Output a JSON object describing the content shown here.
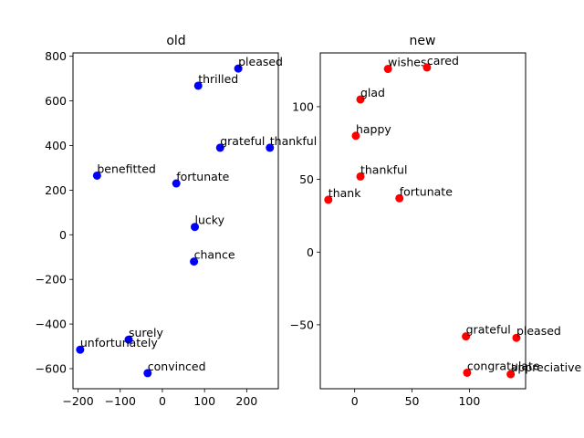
{
  "chart_data": [
    {
      "type": "scatter",
      "title": "old",
      "xlabel": "",
      "ylabel": "",
      "xlim": [
        -212,
        275
      ],
      "ylim": [
        -690,
        815
      ],
      "xticks": [
        -200,
        -100,
        0,
        100,
        200
      ],
      "yticks": [
        -600,
        -400,
        -200,
        0,
        200,
        400,
        600,
        800
      ],
      "xtick_labels": [
        "−200",
        "−100",
        "0",
        "100",
        "200"
      ],
      "ytick_labels": [
        "−600",
        "−400",
        "−200",
        "0",
        "200",
        "400",
        "600",
        "800"
      ],
      "color": "#0000ff",
      "points": [
        {
          "x": 180,
          "y": 745,
          "label": "pleased"
        },
        {
          "x": 85,
          "y": 668,
          "label": "thrilled"
        },
        {
          "x": 137,
          "y": 390,
          "label": "grateful"
        },
        {
          "x": 255,
          "y": 390,
          "label": "thankful"
        },
        {
          "x": -155,
          "y": 265,
          "label": "benefitted"
        },
        {
          "x": 33,
          "y": 230,
          "label": "fortunate"
        },
        {
          "x": 77,
          "y": 35,
          "label": "lucky"
        },
        {
          "x": 75,
          "y": -120,
          "label": "chance"
        },
        {
          "x": -80,
          "y": -470,
          "label": "surely"
        },
        {
          "x": -195,
          "y": -515,
          "label": "unfortunately"
        },
        {
          "x": -35,
          "y": -620,
          "label": "convinced"
        }
      ]
    },
    {
      "type": "scatter",
      "title": "new",
      "xlabel": "",
      "ylabel": "",
      "xlim": [
        -30,
        149
      ],
      "ylim": [
        -94,
        137
      ],
      "xticks": [
        0,
        50,
        100
      ],
      "yticks": [
        -50,
        0,
        50,
        100
      ],
      "xtick_labels": [
        "0",
        "50",
        "100"
      ],
      "ytick_labels": [
        "−50",
        "0",
        "50",
        "100"
      ],
      "color": "#ff0000",
      "points": [
        {
          "x": 29,
          "y": 126,
          "label": "wishes"
        },
        {
          "x": 63,
          "y": 127,
          "label": "cared"
        },
        {
          "x": 5,
          "y": 105,
          "label": "glad"
        },
        {
          "x": 1,
          "y": 80,
          "label": "happy"
        },
        {
          "x": 5,
          "y": 52,
          "label": "thankful"
        },
        {
          "x": -23,
          "y": 36,
          "label": "thank"
        },
        {
          "x": 39,
          "y": 37,
          "label": "fortunate"
        },
        {
          "x": 97,
          "y": -58,
          "label": "grateful"
        },
        {
          "x": 141,
          "y": -59,
          "label": "pleased"
        },
        {
          "x": 98,
          "y": -83,
          "label": "congratulate"
        },
        {
          "x": 136,
          "y": -84,
          "label": "appreciative"
        }
      ]
    }
  ]
}
